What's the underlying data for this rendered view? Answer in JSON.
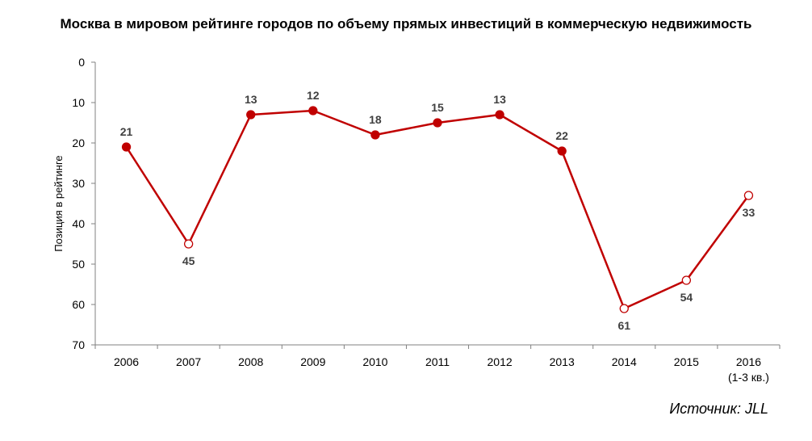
{
  "chart_data": {
    "type": "line",
    "title": "Москва в мировом рейтинге городов по объему прямых инвестиций в коммерческую недвижимость",
    "ylabel": "Позиция в рейтинге",
    "xlabel": "",
    "categories": [
      "2006",
      "2007",
      "2008",
      "2009",
      "2010",
      "2011",
      "2012",
      "2013",
      "2014",
      "2015",
      "2016"
    ],
    "category_sublabels": [
      "",
      "",
      "",
      "",
      "",
      "",
      "",
      "",
      "",
      "",
      "(1-3 кв.)"
    ],
    "series": [
      {
        "values": [
          21,
          45,
          13,
          12,
          18,
          15,
          13,
          22,
          61,
          54,
          33
        ],
        "hollow_markers": [
          false,
          true,
          false,
          false,
          false,
          false,
          false,
          false,
          true,
          true,
          true
        ],
        "label_positions": [
          "above",
          "below",
          "above",
          "above",
          "above",
          "above",
          "above",
          "above",
          "below",
          "below",
          "below"
        ]
      }
    ],
    "ylim": [
      0,
      70
    ],
    "y_inverted": true,
    "yticks": [
      0,
      10,
      20,
      30,
      40,
      50,
      60,
      70
    ],
    "grid": false,
    "color": "#c00000"
  },
  "source": "Источник: JLL"
}
